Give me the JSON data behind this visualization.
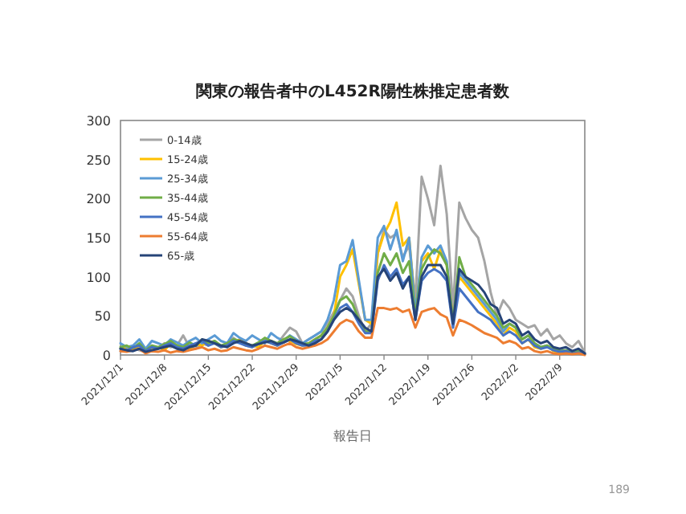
{
  "chart_data": {
    "type": "line",
    "title": "関東の報告者中のL452R陽性株推定患者数",
    "xlabel": "報告日",
    "x": [
      "2021-12-01",
      "2021-12-02",
      "2021-12-03",
      "2021-12-04",
      "2021-12-05",
      "2021-12-06",
      "2021-12-07",
      "2021-12-08",
      "2021-12-09",
      "2021-12-10",
      "2021-12-11",
      "2021-12-12",
      "2021-12-13",
      "2021-12-14",
      "2021-12-15",
      "2021-12-16",
      "2021-12-17",
      "2021-12-18",
      "2021-12-19",
      "2021-12-20",
      "2021-12-21",
      "2021-12-22",
      "2021-12-23",
      "2021-12-24",
      "2021-12-25",
      "2021-12-26",
      "2021-12-27",
      "2021-12-28",
      "2021-12-29",
      "2021-12-30",
      "2021-12-31",
      "2022-01-01",
      "2022-01-02",
      "2022-01-03",
      "2022-01-04",
      "2022-01-05",
      "2022-01-06",
      "2022-01-07",
      "2022-01-08",
      "2022-01-09",
      "2022-01-10",
      "2022-01-11",
      "2022-01-12",
      "2022-01-13",
      "2022-01-14",
      "2022-01-15",
      "2022-01-16",
      "2022-01-17",
      "2022-01-18",
      "2022-01-19",
      "2022-01-20",
      "2022-01-21",
      "2022-01-22",
      "2022-01-23",
      "2022-01-24",
      "2022-01-25",
      "2022-01-26",
      "2022-01-27",
      "2022-01-28",
      "2022-01-29",
      "2022-01-30",
      "2022-01-31",
      "2022-02-01",
      "2022-02-02",
      "2022-02-03",
      "2022-02-04",
      "2022-02-05",
      "2022-02-06",
      "2022-02-07",
      "2022-02-08",
      "2022-02-09",
      "2022-02-10",
      "2022-02-11",
      "2022-02-12",
      "2022-02-13"
    ],
    "series": [
      {
        "name": "0-14歳",
        "color": "#a5a5a5",
        "values": [
          5,
          8,
          10,
          6,
          4,
          12,
          8,
          15,
          10,
          12,
          25,
          10,
          8,
          15,
          12,
          18,
          10,
          14,
          22,
          16,
          12,
          10,
          15,
          20,
          18,
          14,
          25,
          35,
          30,
          15,
          20,
          25,
          30,
          40,
          55,
          70,
          85,
          75,
          50,
          30,
          40,
          130,
          160,
          150,
          155,
          125,
          140,
          70,
          228,
          200,
          166,
          242,
          180,
          60,
          195,
          175,
          160,
          150,
          120,
          80,
          50,
          70,
          60,
          45,
          40,
          35,
          38,
          25,
          33,
          20,
          25,
          15,
          10,
          18,
          3
        ]
      },
      {
        "name": "15-24歳",
        "color": "#ffc000",
        "values": [
          8,
          10,
          6,
          12,
          5,
          8,
          10,
          6,
          15,
          12,
          10,
          8,
          14,
          12,
          18,
          15,
          10,
          12,
          16,
          20,
          15,
          12,
          10,
          18,
          15,
          12,
          20,
          18,
          14,
          12,
          15,
          20,
          25,
          35,
          50,
          100,
          115,
          135,
          90,
          45,
          40,
          130,
          155,
          170,
          195,
          140,
          150,
          60,
          120,
          130,
          110,
          135,
          115,
          45,
          100,
          90,
          80,
          70,
          60,
          50,
          40,
          25,
          35,
          30,
          15,
          20,
          10,
          8,
          12,
          5,
          3,
          5,
          null,
          null,
          null
        ]
      },
      {
        "name": "25-34歳",
        "color": "#5b9bd5",
        "values": [
          15,
          10,
          12,
          20,
          8,
          18,
          15,
          12,
          20,
          16,
          12,
          18,
          22,
          15,
          20,
          25,
          18,
          15,
          28,
          22,
          18,
          25,
          20,
          15,
          28,
          22,
          18,
          25,
          20,
          15,
          20,
          25,
          30,
          45,
          70,
          115,
          120,
          147,
          95,
          45,
          45,
          150,
          165,
          135,
          160,
          120,
          150,
          55,
          125,
          140,
          130,
          140,
          120,
          40,
          105,
          95,
          85,
          75,
          65,
          55,
          45,
          30,
          40,
          35,
          20,
          25,
          15,
          10,
          12,
          8,
          5,
          6,
          3,
          4,
          1
        ]
      },
      {
        "name": "35-44歳",
        "color": "#70ad47",
        "values": [
          10,
          12,
          8,
          15,
          6,
          12,
          10,
          14,
          18,
          12,
          10,
          16,
          12,
          20,
          15,
          18,
          12,
          15,
          20,
          18,
          14,
          12,
          16,
          22,
          18,
          15,
          20,
          24,
          18,
          14,
          15,
          20,
          25,
          35,
          50,
          70,
          75,
          65,
          45,
          30,
          30,
          105,
          130,
          115,
          130,
          105,
          120,
          50,
          110,
          125,
          135,
          130,
          115,
          40,
          125,
          100,
          90,
          80,
          70,
          60,
          50,
          35,
          40,
          35,
          20,
          25,
          15,
          10,
          12,
          8,
          5,
          6,
          3,
          5,
          1
        ]
      },
      {
        "name": "45-54歳",
        "color": "#4472c4",
        "values": [
          8,
          6,
          10,
          12,
          5,
          10,
          8,
          12,
          15,
          10,
          8,
          12,
          15,
          18,
          12,
          15,
          10,
          12,
          18,
          15,
          12,
          10,
          14,
          18,
          15,
          12,
          16,
          20,
          15,
          12,
          12,
          18,
          20,
          30,
          45,
          60,
          65,
          55,
          40,
          28,
          28,
          95,
          115,
          100,
          110,
          90,
          100,
          45,
          95,
          105,
          110,
          105,
          95,
          35,
          85,
          75,
          65,
          55,
          50,
          45,
          35,
          25,
          30,
          25,
          15,
          20,
          12,
          8,
          10,
          6,
          4,
          5,
          2,
          3,
          1
        ]
      },
      {
        "name": "55-64歳",
        "color": "#ed7d31",
        "values": [
          5,
          4,
          6,
          8,
          2,
          5,
          4,
          6,
          3,
          5,
          4,
          6,
          8,
          10,
          6,
          8,
          5,
          6,
          10,
          8,
          6,
          5,
          8,
          12,
          10,
          8,
          12,
          15,
          10,
          8,
          10,
          12,
          15,
          20,
          30,
          40,
          45,
          42,
          30,
          22,
          22,
          60,
          60,
          58,
          60,
          55,
          58,
          35,
          55,
          58,
          60,
          52,
          48,
          25,
          45,
          42,
          38,
          33,
          28,
          25,
          22,
          15,
          18,
          15,
          8,
          10,
          5,
          3,
          5,
          2,
          1,
          2,
          1,
          2,
          0
        ]
      },
      {
        "name": "65-歳",
        "color": "#264478",
        "values": [
          8,
          6,
          5,
          8,
          4,
          6,
          8,
          10,
          12,
          8,
          6,
          10,
          12,
          20,
          18,
          15,
          12,
          10,
          15,
          18,
          15,
          12,
          14,
          16,
          18,
          14,
          16,
          20,
          18,
          15,
          12,
          15,
          20,
          30,
          45,
          55,
          60,
          55,
          45,
          35,
          30,
          100,
          110,
          95,
          105,
          85,
          100,
          45,
          100,
          115,
          115,
          115,
          100,
          40,
          110,
          100,
          95,
          90,
          80,
          65,
          60,
          40,
          45,
          40,
          25,
          30,
          20,
          15,
          18,
          10,
          8,
          10,
          5,
          8,
          2
        ]
      }
    ],
    "xlim": [
      "2021-12-01",
      "2022-02-13"
    ],
    "xticks": [
      {
        "value": "2021-12-01",
        "label": "2021/12/1"
      },
      {
        "value": "2021-12-08",
        "label": "2021/12/8"
      },
      {
        "value": "2021-12-15",
        "label": "2021/12/15"
      },
      {
        "value": "2021-12-22",
        "label": "2021/12/22"
      },
      {
        "value": "2021-12-29",
        "label": "2021/12/29"
      },
      {
        "value": "2022-01-05",
        "label": "2022/1/5"
      },
      {
        "value": "2022-01-12",
        "label": "2022/1/12"
      },
      {
        "value": "2022-01-19",
        "label": "2022/1/19"
      },
      {
        "value": "2022-01-26",
        "label": "2022/1/26"
      },
      {
        "value": "2022-02-02",
        "label": "2022/2/2"
      },
      {
        "value": "2022-02-09",
        "label": "2022/2/9"
      }
    ],
    "ylim": [
      0,
      300
    ],
    "yticks": [
      0,
      50,
      100,
      150,
      200,
      250,
      300
    ],
    "legend": "top left",
    "marker": "none",
    "line_style": "solid",
    "annotations": [
      "189"
    ]
  }
}
